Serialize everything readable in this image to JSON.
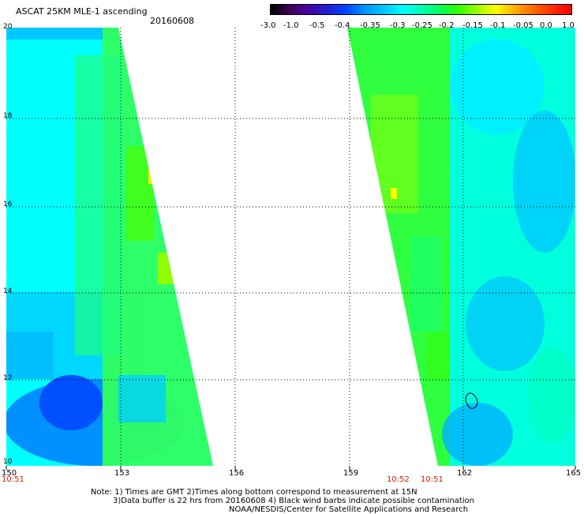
{
  "header": {
    "title": "ASCAT 25KM MLE-1 ascending",
    "date": "20160608"
  },
  "colorbar": {
    "labels": [
      "-3.0",
      "-1.0",
      "-0.5",
      "-0.4",
      "-0.35",
      "-0.3",
      "-0.25",
      "-0.2",
      "-0.15",
      "-0.1",
      "-0.05",
      "0.0",
      "1.0"
    ]
  },
  "map": {
    "lon_labels": [
      "150",
      "153",
      "156",
      "159",
      "162",
      "165"
    ],
    "lat_labels": [
      "20",
      "18",
      "16",
      "14",
      "12",
      "10"
    ],
    "lon_range": [
      150,
      165
    ],
    "lat_range": [
      10,
      20
    ]
  },
  "times": {
    "left": "10:51",
    "right_a": "10:52",
    "right_b": "10:51"
  },
  "notes": {
    "line1": "Note: 1) Times are GMT 2)Times along bottom correspond to measurement at 15N",
    "line2": "3)Data buffer is 22 hrs from 20160608 4) Black wind barbs indicate possible contamination",
    "line3": "NOAA/NESDIS/Center for Satellite Applications and Research"
  }
}
